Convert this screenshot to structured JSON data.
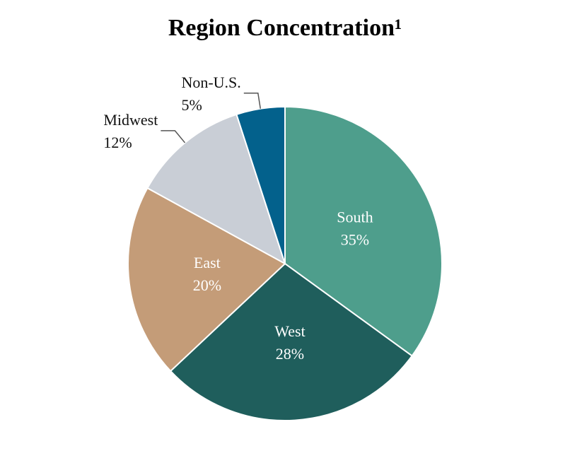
{
  "chart_data": {
    "type": "pie",
    "title": "Region Concentration¹",
    "categories": [
      "South",
      "West",
      "East",
      "Midwest",
      "Non-U.S."
    ],
    "values": [
      35,
      28,
      20,
      12,
      5
    ],
    "value_labels": [
      "35%",
      "28%",
      "20%",
      "12%",
      "5%"
    ],
    "colors": [
      "#4e9e8c",
      "#1f5e5c",
      "#c49c78",
      "#c9ced6",
      "#03618c"
    ]
  }
}
